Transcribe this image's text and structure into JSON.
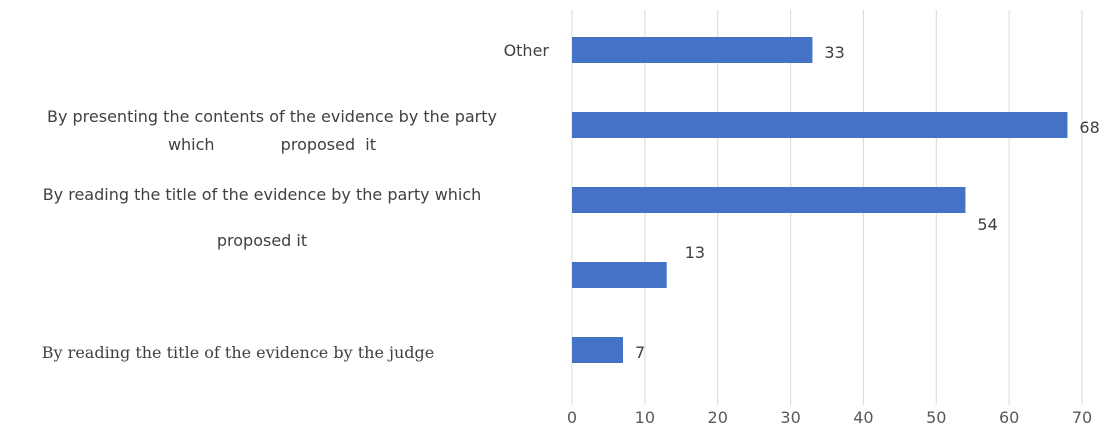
{
  "chart_data": {
    "type": "bar",
    "orientation": "horizontal",
    "categories": [
      "Other",
      "By presenting the contents of the evidence by the party which proposed it",
      "By reading the title of the evidence by the party which proposed it",
      "",
      "By reading the title of the evidence by the judge"
    ],
    "category_lines": [
      [
        "Other"
      ],
      [
        "By presenting the contents of the evidence by the party",
        "which             proposed  it"
      ],
      [
        "By reading the title of the evidence by the party which",
        "",
        "proposed it"
      ],
      [],
      [
        "By reading the title of the evidence by the judge"
      ]
    ],
    "values": [
      33,
      68,
      54,
      13,
      7
    ],
    "data_labels": [
      "33",
      "68",
      "54",
      "13",
      "7"
    ],
    "xlim": [
      0,
      70
    ],
    "x_ticks": [
      0,
      10,
      20,
      30,
      40,
      50,
      60,
      70
    ],
    "grid": "vertical",
    "legend": "none",
    "title": "",
    "xlabel": "",
    "ylabel": "",
    "colors": {
      "bar": "#4472C4",
      "grid": "#D9D9D9",
      "text": "#404040"
    }
  }
}
